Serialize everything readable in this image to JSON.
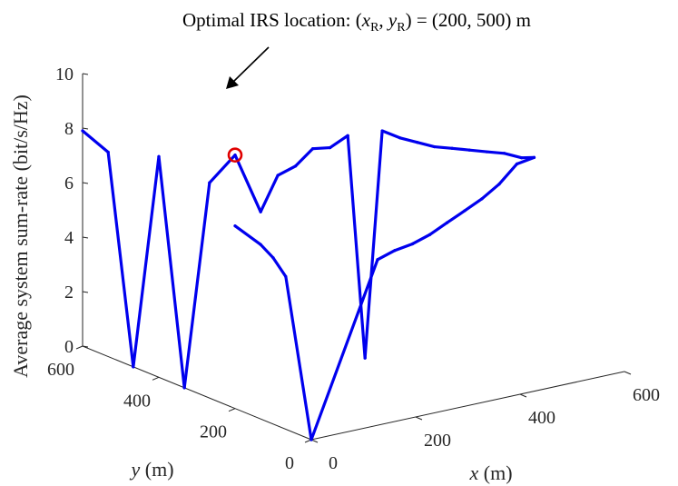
{
  "chart_data": {
    "type": "line",
    "title": "",
    "xlabel": {
      "var": "x",
      "unit": " (m)"
    },
    "ylabel": {
      "var": "y",
      "unit": " (m)"
    },
    "zlabel": "Average system sum-rate (bit/s/Hz)",
    "x_ticks": [
      "0",
      "200",
      "400",
      "600"
    ],
    "y_ticks": [
      "0",
      "200",
      "400",
      "600"
    ],
    "z_ticks": [
      "0",
      "2",
      "4",
      "6",
      "8",
      "10"
    ],
    "xlim": [
      0,
      600
    ],
    "ylim": [
      0,
      600
    ],
    "zlim": [
      0,
      10
    ],
    "grid": false,
    "series": [
      {
        "color": "#0000ee",
        "points": [
          {
            "x": 0,
            "y": 600,
            "z": 7.9
          },
          {
            "x": 0,
            "y": 533,
            "z": 7.5
          },
          {
            "x": 0,
            "y": 467,
            "z": 0.0
          },
          {
            "x": 0,
            "y": 400,
            "z": 8.1
          },
          {
            "x": 0,
            "y": 333,
            "z": 0.0
          },
          {
            "x": 0,
            "y": 267,
            "z": 7.9
          },
          {
            "x": 0,
            "y": 200,
            "z": 9.3
          },
          {
            "x": 0,
            "y": 133,
            "z": 7.6
          },
          {
            "x": 33,
            "y": 133,
            "z": 8.8
          },
          {
            "x": 67,
            "y": 133,
            "z": 9.0
          },
          {
            "x": 100,
            "y": 133,
            "z": 9.5
          },
          {
            "x": 133,
            "y": 133,
            "z": 9.4
          },
          {
            "x": 167,
            "y": 133,
            "z": 9.7
          },
          {
            "x": 200,
            "y": 133,
            "z": 1.4
          },
          {
            "x": 233,
            "y": 133,
            "z": 9.6
          },
          {
            "x": 267,
            "y": 133,
            "z": 9.2
          },
          {
            "x": 300,
            "y": 133,
            "z": 8.9
          },
          {
            "x": 333,
            "y": 133,
            "z": 8.6
          },
          {
            "x": 367,
            "y": 133,
            "z": 8.4
          },
          {
            "x": 400,
            "y": 133,
            "z": 8.2
          },
          {
            "x": 433,
            "y": 133,
            "z": 8.0
          },
          {
            "x": 467,
            "y": 133,
            "z": 7.8
          },
          {
            "x": 500,
            "y": 133,
            "z": 7.5
          },
          {
            "x": 500,
            "y": 100,
            "z": 7.7
          },
          {
            "x": 467,
            "y": 100,
            "z": 7.6
          },
          {
            "x": 433,
            "y": 100,
            "z": 7.0
          },
          {
            "x": 400,
            "y": 100,
            "z": 6.6
          },
          {
            "x": 367,
            "y": 100,
            "z": 6.3
          },
          {
            "x": 333,
            "y": 100,
            "z": 6.0
          },
          {
            "x": 300,
            "y": 100,
            "z": 5.7
          },
          {
            "x": 267,
            "y": 100,
            "z": 5.5
          },
          {
            "x": 233,
            "y": 100,
            "z": 5.4
          },
          {
            "x": 200,
            "y": 100,
            "z": 5.2
          },
          {
            "x": 0,
            "y": 0,
            "z": 0.0
          },
          {
            "x": 0,
            "y": 67,
            "z": 5.6
          },
          {
            "x": 0,
            "y": 100,
            "z": 6.1
          },
          {
            "x": 0,
            "y": 133,
            "z": 6.4
          },
          {
            "x": 0,
            "y": 200,
            "z": 6.7
          }
        ]
      }
    ],
    "highlight": {
      "x": 200,
      "y": 500,
      "z": 9.3,
      "color": "#e00000"
    },
    "annotation": {
      "text": "Optimal IRS location: ",
      "math": {
        "x_var": "x",
        "y_var": "y",
        "subscript": "R",
        "value": "(200, 500)",
        "unit": " m"
      }
    }
  }
}
